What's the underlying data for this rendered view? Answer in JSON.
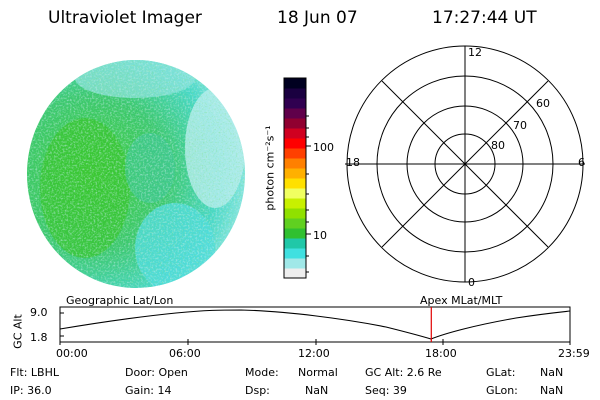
{
  "header": {
    "title": "Ultraviolet Imager",
    "date": "18 Jun 07",
    "time": "17:27:44 UT"
  },
  "colorbar": {
    "unit_label": "photon cm⁻²s⁻¹",
    "ticks": [
      "100",
      "10"
    ],
    "colors": [
      "#eeeeee",
      "#a0e8e8",
      "#40e0e0",
      "#20c8a8",
      "#30c030",
      "#60d020",
      "#90e000",
      "#c8f000",
      "#f0ff60",
      "#ffe000",
      "#ffb000",
      "#ff8000",
      "#ff4000",
      "#ff0000",
      "#d00020",
      "#900030",
      "#60004a",
      "#300050",
      "#1a0040",
      "#000020"
    ]
  },
  "polar_grid": {
    "lat_labels": [
      "60",
      "70",
      "80"
    ],
    "mlt_labels": {
      "top": "12",
      "left": "18",
      "right": "6",
      "bottom": "0"
    }
  },
  "timeline": {
    "left_label": "Geographic Lat/Lon",
    "right_label": "Apex MLat/MLT",
    "axis_title": "GC Alt",
    "y_ticks": [
      "9.0",
      "1.8"
    ],
    "x_ticks": [
      "00:00",
      "06:00",
      "12:00",
      "18:00",
      "23:59"
    ],
    "current_time_hours": 17.46
  },
  "info": {
    "flt": "Flt: LBHL",
    "door": "Door: Open",
    "mode_label": "Mode:",
    "mode_value": "Normal",
    "gc_alt": "GC Alt: 2.6 Re",
    "glat_label": "GLat:",
    "glat_value": "NaN",
    "ip": "IP: 36.0",
    "gain": "Gain: 14",
    "dsp_label": "Dsp:",
    "dsp_value": "NaN",
    "seq": "Seq: 39",
    "glon_label": "GLon:",
    "glon_value": "NaN"
  }
}
